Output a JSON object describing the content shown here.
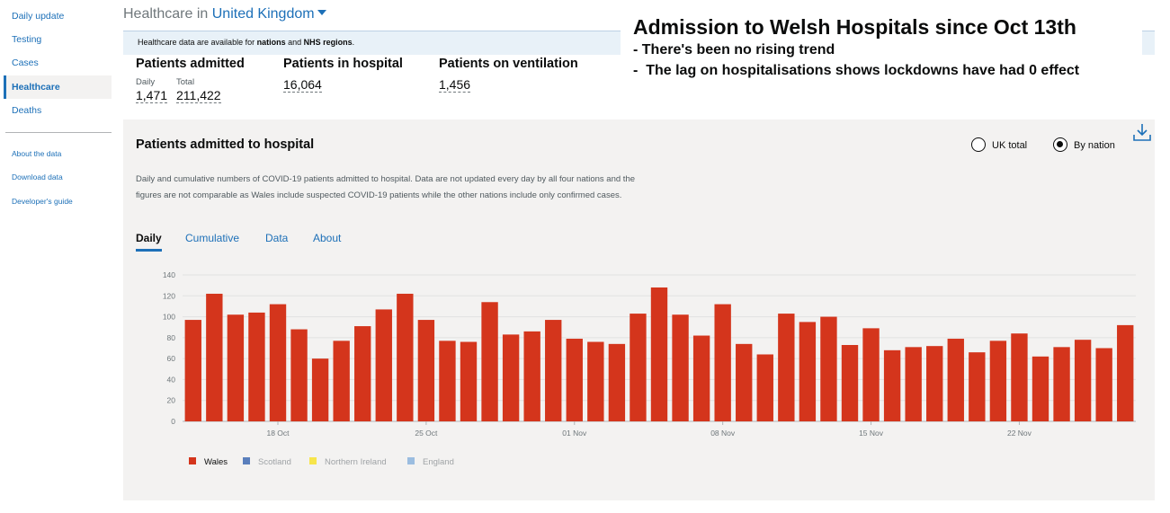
{
  "sidebar": {
    "items": [
      {
        "label": "Daily update"
      },
      {
        "label": "Testing"
      },
      {
        "label": "Cases"
      },
      {
        "label": "Healthcare"
      },
      {
        "label": "Deaths"
      }
    ],
    "links": [
      {
        "label": "About the data"
      },
      {
        "label": "Download data"
      },
      {
        "label": "Developer's guide"
      }
    ]
  },
  "header": {
    "prefix": "Healthcare in",
    "location": "United Kingdom"
  },
  "banner": {
    "text_start": "Healthcare data are available for ",
    "bold1": "nations",
    "text_mid": " and ",
    "bold2": "NHS regions",
    "text_end": ".",
    "close": "×"
  },
  "overlay": {
    "title": "Admission to Welsh Hospitals since Oct 13th",
    "line1": "- There's been no rising trend",
    "line2": "-  The lag on hospitalisations shows lockdowns have had 0 effect"
  },
  "headline": {
    "admitted": {
      "title": "Patients admitted",
      "daily_label": "Daily",
      "daily_value": "1,471",
      "total_label": "Total",
      "total_value": "211,422"
    },
    "in_hospital": {
      "title": "Patients in hospital",
      "value": "16,064"
    },
    "ventilation": {
      "title": "Patients on ventilation",
      "value": "1,456"
    }
  },
  "card": {
    "title": "Patients admitted to hospital",
    "description": "Daily and cumulative numbers of COVID-19 patients admitted to hospital. Data are not updated every day by all four nations and the figures are not comparable as Wales include suspected COVID-19 patients while the other nations include only confirmed cases.",
    "radio": {
      "uk_total": "UK total",
      "by_nation": "By nation",
      "selected": "by_nation"
    },
    "tabs": [
      "Daily",
      "Cumulative",
      "Data",
      "About"
    ],
    "active_tab": "Daily",
    "legend": [
      {
        "name": "Wales",
        "color": "#d4351c",
        "active": true
      },
      {
        "name": "Scotland",
        "color": "#5a7fbc",
        "active": false
      },
      {
        "name": "Northern Ireland",
        "color": "#f7e54b",
        "active": false
      },
      {
        "name": "England",
        "color": "#9bbde0",
        "active": false
      }
    ]
  },
  "colors": {
    "accent": "#1d70b8",
    "bar": "#d4351c"
  },
  "chart_data": {
    "type": "bar",
    "series": [
      {
        "name": "Wales",
        "values": [
          97,
          122,
          102,
          104,
          112,
          88,
          60,
          77,
          91,
          107,
          122,
          97,
          77,
          76,
          114,
          83,
          86,
          97,
          79,
          76,
          74,
          103,
          128,
          102,
          82,
          112,
          74,
          64,
          103,
          95,
          100,
          73,
          89,
          68,
          71,
          72,
          79,
          66,
          77,
          84,
          62,
          71,
          78,
          70,
          92
        ]
      }
    ],
    "x_ticks": [
      {
        "index": 4,
        "label": "18 Oct"
      },
      {
        "index": 11,
        "label": "25 Oct"
      },
      {
        "index": 18,
        "label": "01 Nov"
      },
      {
        "index": 25,
        "label": "08 Nov"
      },
      {
        "index": 32,
        "label": "15 Nov"
      },
      {
        "index": 39,
        "label": "22 Nov"
      }
    ],
    "y_ticks": [
      0,
      20,
      40,
      60,
      80,
      100,
      120,
      140
    ],
    "ylim": [
      0,
      140
    ],
    "grid": true
  }
}
